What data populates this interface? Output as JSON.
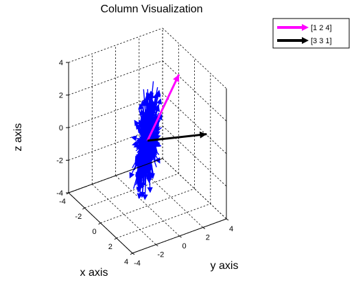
{
  "chart_data": {
    "type": "3d-quiver",
    "title": "Column Visualization",
    "xlabel": "x axis",
    "ylabel": "y axis",
    "zlabel": "z axis",
    "xlim": [
      -4,
      4
    ],
    "ylim": [
      -4,
      4
    ],
    "zlim": [
      -4,
      4
    ],
    "x_ticks": [
      "-4",
      "-2",
      "0",
      "2",
      "4"
    ],
    "y_ticks": [
      "-4",
      "-2",
      "0",
      "2",
      "4"
    ],
    "z_ticks": [
      "-4",
      "-2",
      "0",
      "2",
      "4"
    ],
    "grid": true,
    "legend_position": "top-right",
    "series": [
      {
        "name": "[1 2 4]",
        "color": "#ff00ff",
        "vector": [
          1,
          2,
          4
        ]
      },
      {
        "name": "[3 3 1]",
        "color": "#000000",
        "vector": [
          3,
          3,
          1
        ]
      }
    ],
    "cloud_color": "#0000ff",
    "cloud_principal_direction": [
      -1,
      1,
      1
    ]
  }
}
